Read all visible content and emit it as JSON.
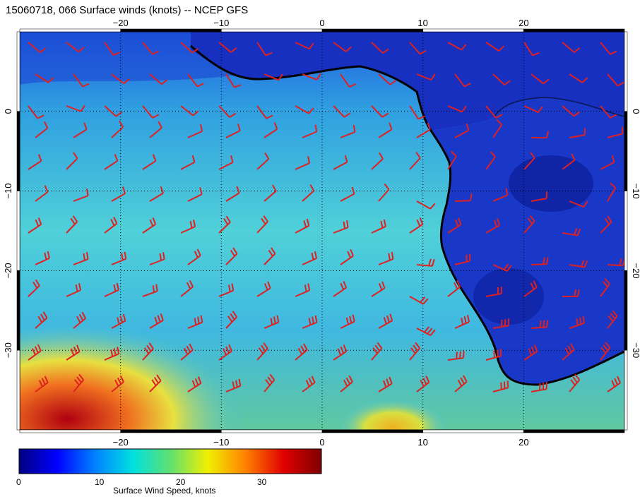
{
  "title": "15060718, 066 Surface winds (knots) -- NCEP GFS",
  "map": {
    "lon_range": [
      -30,
      30
    ],
    "lat_range": [
      10,
      -40
    ],
    "lon_ticks": [
      "−20",
      "−10",
      "0",
      "10",
      "20"
    ],
    "lat_ticks": [
      "0",
      "−10",
      "−20",
      "−30"
    ],
    "lon_tick_values": [
      -20,
      -10,
      0,
      10,
      20
    ],
    "lat_tick_values": [
      0,
      -10,
      -20,
      -30
    ],
    "gridlines": "dotted every 10°",
    "wind_barb_color": "#e02020",
    "coastline_color": "#000000",
    "region": "Gulf of Guinea and southwestern Africa"
  },
  "colorbar": {
    "label": "Surface Wind Speed, knots",
    "ticks": [
      "0",
      "10",
      "20",
      "30"
    ],
    "tick_values": [
      0,
      10,
      20,
      30
    ],
    "range": [
      0,
      37
    ],
    "colormap": [
      "#00007f",
      "#0000ff",
      "#0080ff",
      "#00e0e0",
      "#60e070",
      "#f0f000",
      "#ff8000",
      "#e00000",
      "#7f0000"
    ]
  }
}
